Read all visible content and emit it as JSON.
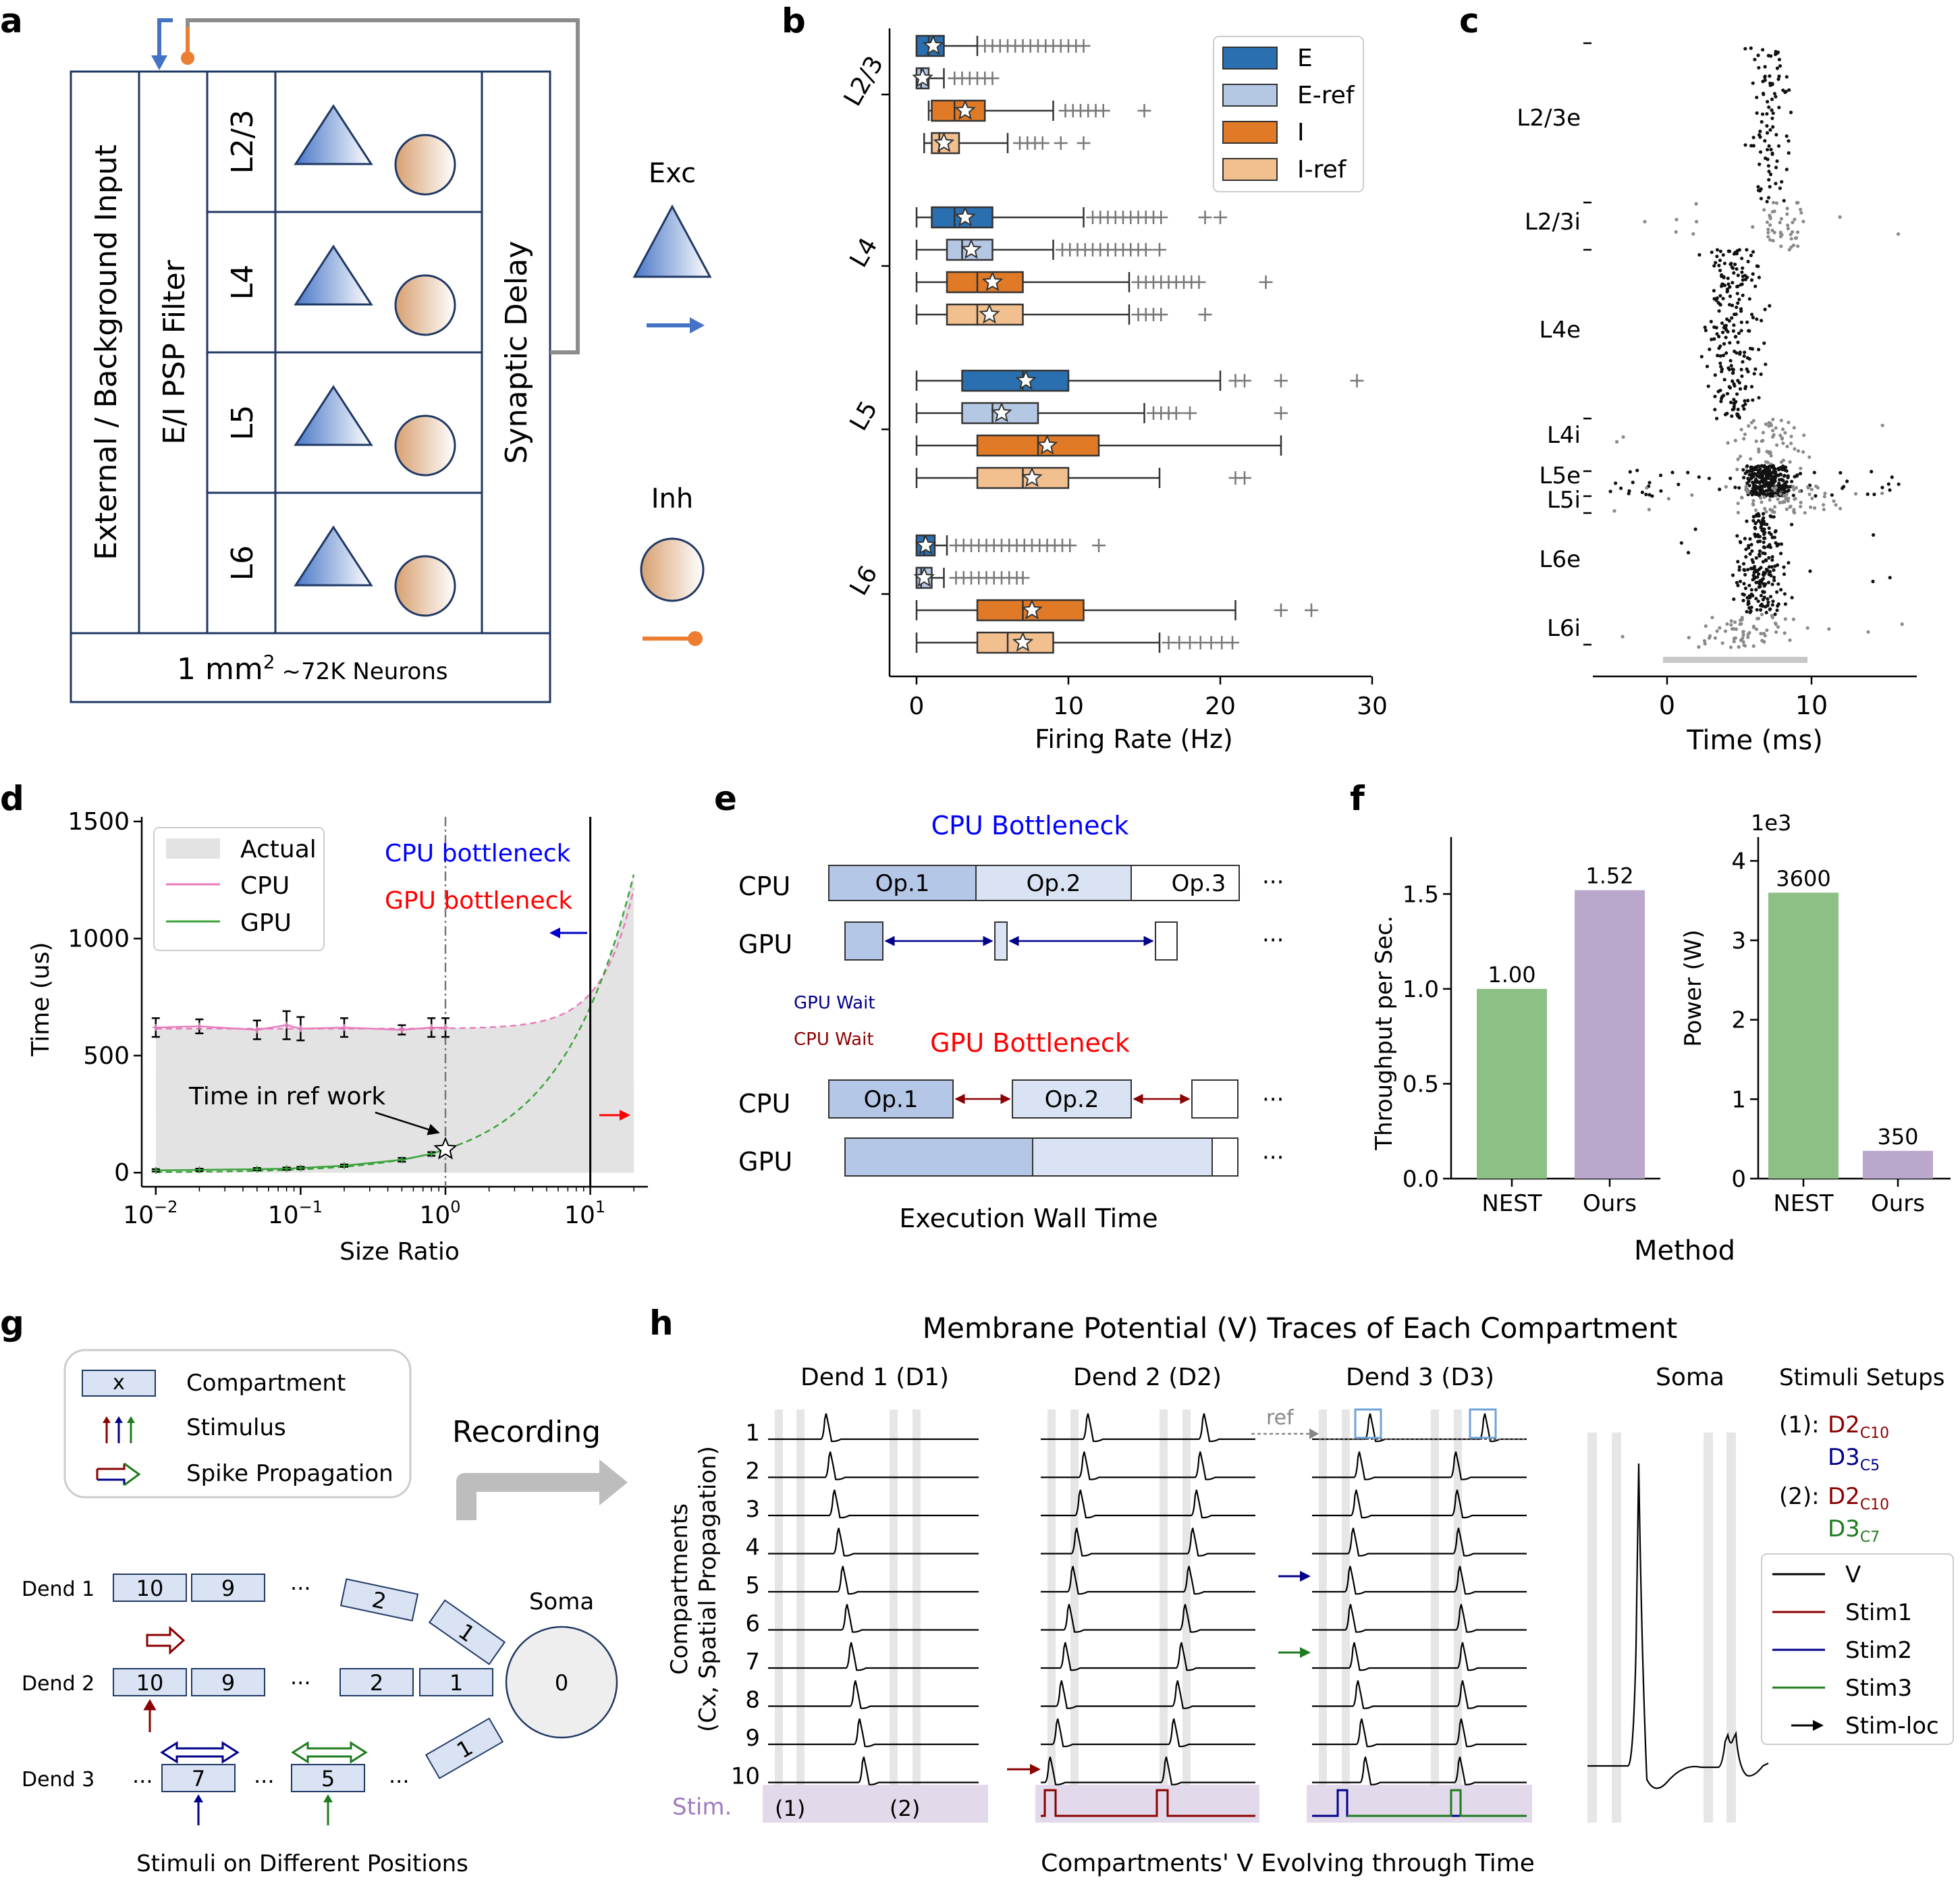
{
  "panel_letters": [
    "a",
    "b",
    "c",
    "d",
    "e",
    "f",
    "g",
    "h"
  ],
  "colors": {
    "exc_blue": "#2a6fb0",
    "exc_ref": "#b4c8e4",
    "inh_orange": "#e07a26",
    "inh_ref": "#f2c08f",
    "box_border": "#1f3864",
    "cpu_pink": "#e87bbd",
    "gpu_green": "#3aa33a",
    "bar_green": "#8cc084",
    "bar_purple": "#b9a7cc",
    "stim_red": "#8b0000",
    "stim_blue": "#00008b",
    "stim_green": "#1e7b1e",
    "stim_band": "#e2d9ea"
  },
  "a": {
    "external_input": "External / Background Input",
    "psp_filter": "E/I PSP Filter",
    "layers": [
      "L2/3",
      "L4",
      "L5",
      "L6"
    ],
    "synaptic_delay": "Synaptic Delay",
    "area": "1 mm",
    "area_sup": "2",
    "neurons": "~72K Neurons",
    "exc_label": "Exc",
    "inh_label": "Inh"
  },
  "chart_data": [
    {
      "panel": "b",
      "type": "box",
      "xlabel": "Firing Rate (Hz)",
      "xlim": [
        -1.5,
        30
      ],
      "xticks": [
        0,
        10,
        20,
        30
      ],
      "ylabels": [
        "L2/3",
        "L4",
        "L5",
        "L6"
      ],
      "legend": [
        "E",
        "E-ref",
        "I",
        "I-ref"
      ],
      "groups": [
        {
          "layer": "L2/3",
          "boxes": [
            {
              "series": "E",
              "whislo": 0,
              "q1": 0,
              "med": 0.8,
              "q3": 1.8,
              "whishi": 4,
              "mean": 1.1,
              "fliers": [
                4.5,
                5,
                5.5,
                6,
                6.5,
                7,
                7.5,
                8,
                8.5,
                9,
                9.5,
                10,
                10.5,
                11
              ]
            },
            {
              "series": "E-ref",
              "whislo": 0,
              "q1": 0,
              "med": 0.3,
              "q3": 0.8,
              "whislo2": 0,
              "whishi": 1.8,
              "mean": 0.4,
              "fliers": [
                2.5,
                3,
                3.5,
                4,
                4.5,
                5
              ]
            },
            {
              "series": "I",
              "whislo": 0.8,
              "q1": 1,
              "med": 2.5,
              "q3": 4.5,
              "whishi": 9,
              "mean": 3.2,
              "fliers": [
                9.8,
                10.3,
                10.8,
                11.3,
                11.8,
                12.3,
                15
              ]
            },
            {
              "series": "I-ref",
              "whislo": 0.5,
              "q1": 1,
              "med": 1.5,
              "q3": 2.8,
              "whishi": 6,
              "mean": 1.8,
              "fliers": [
                6.8,
                7.3,
                7.8,
                8.3,
                9.5,
                11
              ]
            }
          ]
        },
        {
          "layer": "L4",
          "boxes": [
            {
              "series": "E",
              "whislo": 0,
              "q1": 1,
              "med": 2.5,
              "q3": 5,
              "whishi": 11,
              "mean": 3.2,
              "fliers": [
                11.6,
                12.1,
                12.6,
                13.1,
                13.6,
                14.1,
                14.6,
                15.1,
                15.6,
                16.1,
                19,
                20
              ]
            },
            {
              "series": "E-ref",
              "whislo": 0,
              "q1": 2,
              "med": 3,
              "q3": 5,
              "whishi": 9,
              "mean": 3.6,
              "fliers": [
                9.6,
                10.1,
                10.6,
                11.1,
                11.6,
                12.1,
                12.6,
                13.1,
                13.6,
                14.1,
                14.6,
                15.1,
                16
              ]
            },
            {
              "series": "I",
              "whislo": 0,
              "q1": 2,
              "med": 4,
              "q3": 7,
              "whishi": 14,
              "mean": 5,
              "fliers": [
                14.6,
                15.1,
                15.6,
                16.1,
                16.6,
                17.1,
                17.6,
                18.1,
                18.6,
                23
              ]
            },
            {
              "series": "I-ref",
              "whislo": 0,
              "q1": 2,
              "med": 4,
              "q3": 7,
              "whishi": 14,
              "mean": 4.8,
              "fliers": [
                14.6,
                15.1,
                15.6,
                16.1,
                19
              ]
            }
          ]
        },
        {
          "layer": "L5",
          "boxes": [
            {
              "series": "E",
              "whislo": 0,
              "q1": 3,
              "med": 7,
              "q3": 10,
              "whishi": 20,
              "mean": 7.2,
              "fliers": [
                21,
                21.6,
                24,
                29
              ]
            },
            {
              "series": "E-ref",
              "whislo": 0,
              "q1": 3,
              "med": 5,
              "q3": 8,
              "whishi": 15,
              "mean": 5.6,
              "fliers": [
                15.6,
                16.1,
                16.6,
                17.1,
                18,
                24
              ]
            },
            {
              "series": "I",
              "whislo": 0,
              "q1": 4,
              "med": 8,
              "q3": 12,
              "whishi": 24,
              "mean": 8.6,
              "fliers": []
            },
            {
              "series": "I-ref",
              "whislo": 0,
              "q1": 4,
              "med": 7,
              "q3": 10,
              "whishi": 16,
              "mean": 7.6,
              "fliers": [
                21,
                21.6
              ]
            }
          ]
        },
        {
          "layer": "L6",
          "boxes": [
            {
              "series": "E",
              "whislo": 0,
              "q1": 0,
              "med": 0.5,
              "q3": 1.2,
              "whishi": 2,
              "mean": 0.6,
              "fliers": [
                2.6,
                3.1,
                3.6,
                4.1,
                4.6,
                5.1,
                5.6,
                6.1,
                6.6,
                7.1,
                7.6,
                8.1,
                8.6,
                9.1,
                9.6,
                10.1,
                12
              ]
            },
            {
              "series": "E-ref",
              "whislo": 0,
              "q1": 0,
              "med": 0.3,
              "q3": 1,
              "whishi": 1.8,
              "mean": 0.5,
              "fliers": [
                2.6,
                3.1,
                3.6,
                4.1,
                4.6,
                5.1,
                5.6,
                6.1,
                6.6,
                7
              ]
            },
            {
              "series": "I",
              "whislo": 0,
              "q1": 4,
              "med": 7,
              "q3": 11,
              "whishi": 21,
              "mean": 7.6,
              "fliers": [
                24,
                26
              ]
            },
            {
              "series": "I-ref",
              "whislo": 0,
              "q1": 4,
              "med": 6,
              "q3": 9,
              "whishi": 16,
              "mean": 7,
              "fliers": [
                16.6,
                17.3,
                18,
                18.7,
                19.4,
                20.1,
                20.8
              ]
            }
          ]
        }
      ]
    },
    {
      "panel": "c",
      "type": "raster",
      "xlabel": "Time (ms)",
      "xlim": [
        -5,
        17
      ],
      "xticks": [
        0,
        10
      ],
      "populations": [
        "L2/3e",
        "L2/3i",
        "L4e",
        "L4i",
        "L5e",
        "L5i",
        "L6e",
        "L6i"
      ],
      "stimulus_window": [
        0,
        10
      ]
    },
    {
      "panel": "d",
      "type": "line",
      "xlabel": "Size Ratio",
      "ylabel": "Time (us)",
      "xscale": "log",
      "xlim": [
        0.008,
        25
      ],
      "ylim": [
        -60,
        1520
      ],
      "yticks": [
        0,
        500,
        1000,
        1500
      ],
      "xtick_labels": [
        "10",
        "10",
        "10",
        "10"
      ],
      "xtick_exps": [
        "−2",
        "−1",
        "0",
        "1"
      ],
      "legend": [
        "Actual",
        "CPU",
        "GPU"
      ],
      "series": [
        {
          "name": "CPU",
          "x": [
            0.01,
            0.02,
            0.05,
            0.08,
            0.1,
            0.2,
            0.5,
            0.8,
            1.0
          ],
          "y": [
            620,
            625,
            610,
            630,
            615,
            620,
            610,
            620,
            620
          ],
          "err": [
            40,
            30,
            40,
            60,
            50,
            40,
            20,
            40,
            40
          ]
        },
        {
          "name": "GPU",
          "x": [
            0.01,
            0.02,
            0.05,
            0.08,
            0.1,
            0.2,
            0.5,
            0.8,
            1.0
          ],
          "y": [
            10,
            12,
            15,
            17,
            20,
            30,
            55,
            80,
            100
          ],
          "err": [
            5,
            5,
            5,
            5,
            5,
            5,
            8,
            8,
            8
          ]
        }
      ],
      "annotations": {
        "cpu_bottleneck": "CPU bottleneck",
        "gpu_bottleneck": "GPU bottleneck",
        "time_in_ref": "Time in ref work",
        "crossover_x": 10,
        "ref_x": 1
      }
    },
    {
      "panel": "f-left",
      "type": "bar",
      "xlabel": "Method",
      "ylabel": "Throughput per Sec.",
      "categories": [
        "NEST",
        "Ours"
      ],
      "values": [
        1.0,
        1.52
      ],
      "value_labels": [
        "1.00",
        "1.52"
      ],
      "ylim": [
        0,
        1.8
      ],
      "yticks": [
        "0.0",
        "0.5",
        "1.0",
        "1.5"
      ]
    },
    {
      "panel": "f-right",
      "type": "bar",
      "ylabel": "Power (W)",
      "categories": [
        "NEST",
        "Ours"
      ],
      "values": [
        3600,
        350
      ],
      "value_labels": [
        "3600",
        "350"
      ],
      "scale_label": "1e3",
      "ylim": [
        0,
        4300
      ],
      "yticks": [
        "0",
        "1",
        "2",
        "3",
        "4"
      ]
    }
  ],
  "e": {
    "cpu_bottleneck_title": "CPU Bottleneck",
    "gpu_bottleneck_title": "GPU Bottleneck",
    "cpu_label": "CPU",
    "gpu_label": "GPU",
    "ops_top": [
      "Op.1",
      "Op.2",
      "Op.3"
    ],
    "ops_bottom": [
      "Op.1",
      "Op.2"
    ],
    "gpu_wait": "GPU Wait",
    "cpu_wait": "CPU Wait",
    "ellipsis": "···",
    "xlabel": "Execution Wall Time"
  },
  "g": {
    "legend_compartment_box": "x",
    "legend_compartment": "Compartment",
    "legend_stimulus": "Stimulus",
    "legend_spike": "Spike Propagation",
    "recording": "Recording",
    "dend1": "Dend 1",
    "dend2": "Dend 2",
    "dend3": "Dend 3",
    "soma": "Soma",
    "soma_index": "0",
    "ellipsis": "···",
    "d1_boxes": [
      "10",
      "9",
      "2",
      "1"
    ],
    "d2_boxes": [
      "10",
      "9",
      "2",
      "1"
    ],
    "d3_boxes": [
      "7",
      "5",
      "1"
    ],
    "caption": "Stimuli on Different Positions"
  },
  "h": {
    "title": "Membrane Potential (V) Traces of Each Compartment",
    "cols": [
      "Dend 1 (D1)",
      "Dend 2 (D2)",
      "Dend 3 (D3)",
      "Soma"
    ],
    "row_labels": [
      "1",
      "2",
      "3",
      "4",
      "5",
      "6",
      "7",
      "8",
      "9",
      "10"
    ],
    "ylabel1": "Compartments",
    "ylabel2": "(Cx, Spatial Propagation)",
    "stim_label": "Stim.",
    "stim_1": "(1)",
    "stim_2": "(2)",
    "ref_label": "ref",
    "setups_title": "Stimuli Setups",
    "setup1_key": "(1):",
    "setup2_key": "(2):",
    "d2": "D2",
    "d3": "D3",
    "c10": "C10",
    "c5": "C5",
    "c7": "C7",
    "legend": [
      "V",
      "Stim1",
      "Stim2",
      "Stim3",
      "Stim-loc"
    ],
    "xlabel": "Compartments' V Evolving through Time"
  }
}
